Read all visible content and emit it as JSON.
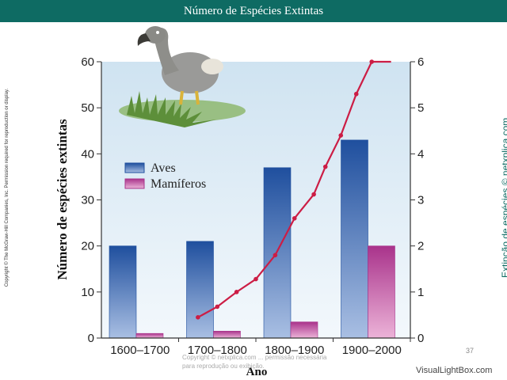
{
  "header": {
    "title": "Número de Espécies Extintas"
  },
  "side_text": {
    "copyright": "Copyright © The McGraw-Hill Companies, Inc. Permission required for reproduction or display.",
    "source": "Extinção de espécies © netxplica.com"
  },
  "footer": {
    "notice": "Copyright © netxplica.com ... permissão necessária para reprodução ou exibição.",
    "slide_number": "37",
    "watermark": "VisualLightBox.com"
  },
  "colors": {
    "birds": "#1f4f9e",
    "mammals": "#a9338b",
    "trend_line": "#cc1d45",
    "plot_bg": "#d7e8f4",
    "title_bar": "#0e6b63"
  },
  "picture": {
    "subject": "dodo-bird"
  },
  "chart_data": {
    "type": "bar",
    "categories": [
      "1600–1700",
      "1700–1800",
      "1800–1900",
      "1900–2000"
    ],
    "series": [
      {
        "name": "Aves",
        "values": [
          20,
          21,
          37,
          43
        ]
      },
      {
        "name": "Mamíferos",
        "values": [
          1,
          1.5,
          3.5,
          20
        ]
      }
    ],
    "trend_line": {
      "axis": "right",
      "x": [
        1725,
        1750,
        1775,
        1800,
        1825,
        1850,
        1875,
        1890,
        1910,
        1930,
        1950,
        1962,
        1975
      ],
      "y": [
        0.45,
        0.68,
        1.0,
        1.28,
        1.8,
        2.6,
        3.12,
        3.72,
        4.4,
        5.3,
        6.0,
        6.0,
        6.0
      ]
    },
    "xlabel": "Ano",
    "ylabel": "Número de espécies extintas",
    "ylim": [
      0,
      60
    ],
    "yticks": [
      0,
      10,
      20,
      30,
      40,
      50,
      60
    ],
    "y2lim": [
      0,
      6
    ],
    "y2ticks": [
      0,
      1,
      2,
      3,
      4,
      5,
      6
    ],
    "legend": {
      "position": "left",
      "items": [
        "Aves",
        "Mamíferos"
      ]
    },
    "grid": false
  }
}
